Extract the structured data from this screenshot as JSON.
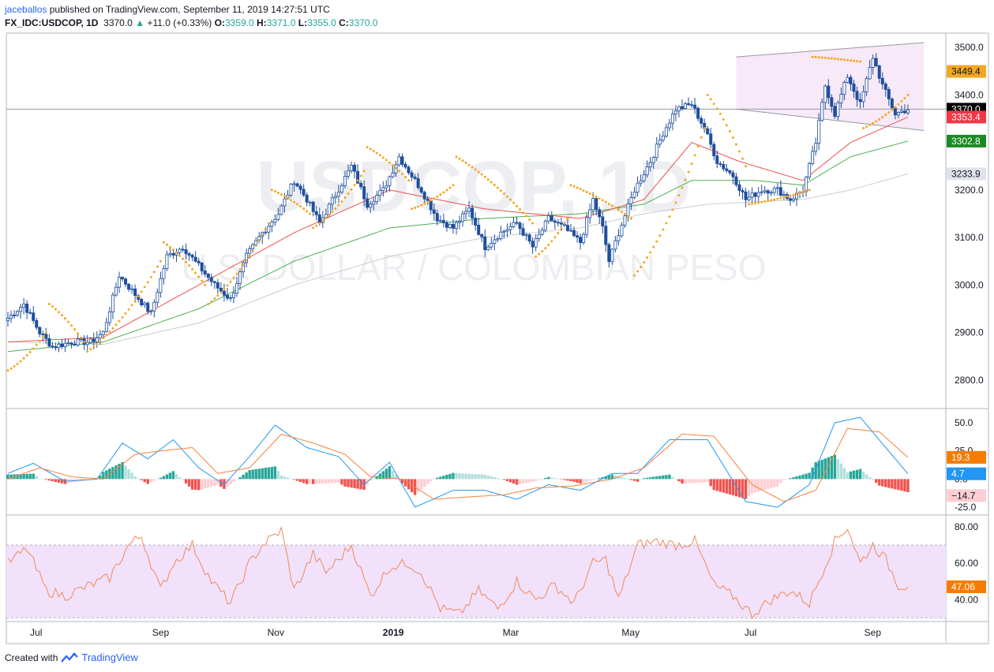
{
  "header": {
    "author": "jaceballos",
    "published_text": "published on TradingView.com, September 11, 2019 14:27:51 UTC",
    "symbol": "FX_IDC:USDCOP, 1D",
    "last": "3370.0",
    "change_arrow": "▲",
    "change": "+11.0 (+0.33%)",
    "o_label": "O:",
    "o": "3359.0",
    "h_label": "H:",
    "h": "3371.0",
    "l_label": "L:",
    "l": "3355.0",
    "c_label": "C:",
    "c": "3370.0"
  },
  "watermark": {
    "main": "USDCOP, 1D",
    "sub": "U.S. DOLLAR / COLOMBIAN PESO"
  },
  "footer": {
    "created_with": "Created with",
    "brand": "TradingView"
  },
  "colors": {
    "up": "#26a69a",
    "candle": "#1f4e9c",
    "sar": "#f5a623",
    "ma_fast": "#f05050",
    "ma_mid": "#4caf50",
    "ma_slow": "#cccccc",
    "channel_fill": "#f7e9f7",
    "rsi_band": "#f1e1fb",
    "rsi_line": "#f08a5a",
    "macd_line": "#2196f3",
    "signal_line": "#f5813a",
    "hist_up_strong": "#26a69a",
    "hist_up_weak": "#b2dfdb",
    "hist_down_strong": "#ef5350",
    "hist_down_weak": "#ffcdd2"
  },
  "chart_data": [
    {
      "type": "candlestick",
      "title": "FX_IDC:USDCOP, 1D",
      "x_ticks": [
        "Jul",
        "Sep",
        "Nov",
        "2019",
        "Mar",
        "May",
        "Jul",
        "Sep"
      ],
      "ylim": [
        2740,
        3530
      ],
      "y_ticks": [
        "3500.0",
        "3400.0",
        "3300.0",
        "3200.0",
        "3100.0",
        "3000.0",
        "2900.0",
        "2800.0"
      ],
      "price_labels": [
        {
          "value": "3449.4",
          "bg": "#f5a623",
          "fg": "#131722",
          "y": 3449.4
        },
        {
          "value": "3370.0",
          "bg": "#000000",
          "fg": "#ffffff",
          "y": 3370.0
        },
        {
          "value": "3353.4",
          "bg": "#f23645",
          "fg": "#ffffff",
          "y": 3353.4
        },
        {
          "value": "3302.8",
          "bg": "#1b8a22",
          "fg": "#ffffff",
          "y": 3302.8
        },
        {
          "value": "3233.9",
          "bg": "#e0e3eb",
          "fg": "#131722",
          "y": 3233.9
        }
      ],
      "last_price": 3370.0,
      "close_anchors": [
        [
          0,
          2930
        ],
        [
          5,
          2960
        ],
        [
          10,
          2900
        ],
        [
          14,
          2870
        ],
        [
          20,
          2880
        ],
        [
          26,
          2880
        ],
        [
          30,
          2900
        ],
        [
          35,
          3020
        ],
        [
          40,
          2980
        ],
        [
          45,
          2940
        ],
        [
          50,
          3060
        ],
        [
          55,
          3080
        ],
        [
          60,
          3040
        ],
        [
          65,
          3000
        ],
        [
          70,
          2970
        ],
        [
          75,
          3060
        ],
        [
          80,
          3110
        ],
        [
          85,
          3150
        ],
        [
          90,
          3220
        ],
        [
          94,
          3180
        ],
        [
          98,
          3130
        ],
        [
          103,
          3190
        ],
        [
          108,
          3250
        ],
        [
          113,
          3170
        ],
        [
          118,
          3200
        ],
        [
          123,
          3270
        ],
        [
          127,
          3230
        ],
        [
          130,
          3200
        ],
        [
          135,
          3140
        ],
        [
          140,
          3120
        ],
        [
          145,
          3160
        ],
        [
          150,
          3080
        ],
        [
          155,
          3110
        ],
        [
          160,
          3130
        ],
        [
          165,
          3080
        ],
        [
          170,
          3140
        ],
        [
          175,
          3120
        ],
        [
          180,
          3090
        ],
        [
          184,
          3180
        ],
        [
          187,
          3120
        ],
        [
          189,
          3050
        ],
        [
          192,
          3110
        ],
        [
          197,
          3200
        ],
        [
          202,
          3260
        ],
        [
          206,
          3320
        ],
        [
          210,
          3370
        ],
        [
          215,
          3380
        ],
        [
          219,
          3330
        ],
        [
          223,
          3260
        ],
        [
          228,
          3230
        ],
        [
          232,
          3180
        ],
        [
          237,
          3200
        ],
        [
          242,
          3200
        ],
        [
          246,
          3180
        ],
        [
          250,
          3200
        ],
        [
          254,
          3300
        ],
        [
          257,
          3420
        ],
        [
          260,
          3360
        ],
        [
          264,
          3440
        ],
        [
          268,
          3380
        ],
        [
          272,
          3480
        ],
        [
          275,
          3420
        ],
        [
          279,
          3360
        ],
        [
          283,
          3370
        ]
      ],
      "parabolic_sar_segments": [
        {
          "dir": "below",
          "start": 0,
          "end": 12,
          "from": 2820,
          "to": 2900
        },
        {
          "dir": "above",
          "start": 13,
          "end": 24,
          "from": 2960,
          "to": 2880
        },
        {
          "dir": "below",
          "start": 25,
          "end": 48,
          "from": 2860,
          "to": 3050
        },
        {
          "dir": "above",
          "start": 49,
          "end": 62,
          "from": 3090,
          "to": 3000
        },
        {
          "dir": "below",
          "start": 63,
          "end": 82,
          "from": 2960,
          "to": 3130
        },
        {
          "dir": "above",
          "start": 83,
          "end": 95,
          "from": 3200,
          "to": 3150
        },
        {
          "dir": "below",
          "start": 96,
          "end": 112,
          "from": 3120,
          "to": 3240
        },
        {
          "dir": "above",
          "start": 113,
          "end": 126,
          "from": 3290,
          "to": 3220
        },
        {
          "dir": "below",
          "start": 127,
          "end": 140,
          "from": 3160,
          "to": 3210
        },
        {
          "dir": "above",
          "start": 141,
          "end": 165,
          "from": 3270,
          "to": 3130
        },
        {
          "dir": "below",
          "start": 166,
          "end": 176,
          "from": 3060,
          "to": 3140
        },
        {
          "dir": "above",
          "start": 177,
          "end": 196,
          "from": 3210,
          "to": 3140
        },
        {
          "dir": "below",
          "start": 197,
          "end": 219,
          "from": 3020,
          "to": 3330
        },
        {
          "dir": "above",
          "start": 220,
          "end": 232,
          "from": 3400,
          "to": 3250
        },
        {
          "dir": "below",
          "start": 233,
          "end": 252,
          "from": 3170,
          "to": 3200
        },
        {
          "dir": "above",
          "start": 253,
          "end": 268,
          "from": 3480,
          "to": 3470
        },
        {
          "dir": "below",
          "start": 269,
          "end": 283,
          "from": 3330,
          "to": 3400
        }
      ],
      "ma_fast_anchors": [
        [
          0,
          2880
        ],
        [
          30,
          2890
        ],
        [
          60,
          3000
        ],
        [
          90,
          3110
        ],
        [
          120,
          3200
        ],
        [
          150,
          3160
        ],
        [
          180,
          3140
        ],
        [
          200,
          3180
        ],
        [
          215,
          3300
        ],
        [
          230,
          3260
        ],
        [
          250,
          3220
        ],
        [
          265,
          3300
        ],
        [
          283,
          3353.4
        ]
      ],
      "ma_mid_anchors": [
        [
          0,
          2860
        ],
        [
          30,
          2880
        ],
        [
          60,
          2950
        ],
        [
          90,
          3050
        ],
        [
          120,
          3120
        ],
        [
          150,
          3140
        ],
        [
          180,
          3150
        ],
        [
          200,
          3170
        ],
        [
          215,
          3220
        ],
        [
          235,
          3220
        ],
        [
          250,
          3210
        ],
        [
          265,
          3270
        ],
        [
          283,
          3302.8
        ]
      ],
      "ma_slow_anchors": [
        [
          0,
          2880
        ],
        [
          30,
          2875
        ],
        [
          60,
          2920
        ],
        [
          90,
          3000
        ],
        [
          120,
          3060
        ],
        [
          150,
          3100
        ],
        [
          180,
          3120
        ],
        [
          200,
          3150
        ],
        [
          220,
          3170
        ],
        [
          250,
          3180
        ],
        [
          265,
          3200
        ],
        [
          283,
          3233.9
        ]
      ],
      "channel": {
        "upper": [
          [
            229,
            3480
          ],
          [
            288,
            3510
          ]
        ],
        "lower": [
          [
            229,
            3370
          ],
          [
            288,
            3325
          ]
        ],
        "fill_from": 229,
        "fill_to": 288
      },
      "horizontal_line": 3370.0
    },
    {
      "type": "macd",
      "ylim": [
        -32,
        62
      ],
      "y_ticks": [
        "50.0",
        "25.0",
        "0.0",
        "-25.0"
      ],
      "value_labels": [
        {
          "value": "19.3",
          "bg": "#f57c00",
          "fg": "#ffffff",
          "y": 19.3
        },
        {
          "value": "4.7",
          "bg": "#2196f3",
          "fg": "#ffffff",
          "y": 4.7
        },
        {
          "value": "−14.7",
          "bg": "#ffcdd2",
          "fg": "#131722",
          "y": -14.7
        }
      ],
      "macd_anchors": [
        [
          0,
          5
        ],
        [
          8,
          14
        ],
        [
          18,
          -2
        ],
        [
          28,
          0
        ],
        [
          36,
          32
        ],
        [
          44,
          18
        ],
        [
          52,
          35
        ],
        [
          60,
          10
        ],
        [
          68,
          -5
        ],
        [
          76,
          20
        ],
        [
          84,
          48
        ],
        [
          94,
          28
        ],
        [
          104,
          20
        ],
        [
          112,
          -5
        ],
        [
          120,
          15
        ],
        [
          128,
          -25
        ],
        [
          140,
          -10
        ],
        [
          150,
          -10
        ],
        [
          160,
          -18
        ],
        [
          170,
          -5
        ],
        [
          180,
          -10
        ],
        [
          190,
          5
        ],
        [
          198,
          5
        ],
        [
          208,
          35
        ],
        [
          220,
          35
        ],
        [
          232,
          -20
        ],
        [
          242,
          -25
        ],
        [
          252,
          -5
        ],
        [
          260,
          50
        ],
        [
          268,
          55
        ],
        [
          276,
          28
        ],
        [
          283,
          4.7
        ]
      ],
      "signal_anchors": [
        [
          0,
          0
        ],
        [
          10,
          10
        ],
        [
          20,
          2
        ],
        [
          30,
          0
        ],
        [
          40,
          22
        ],
        [
          48,
          25
        ],
        [
          58,
          28
        ],
        [
          66,
          5
        ],
        [
          76,
          10
        ],
        [
          86,
          40
        ],
        [
          96,
          32
        ],
        [
          106,
          22
        ],
        [
          114,
          2
        ],
        [
          124,
          0
        ],
        [
          134,
          -18
        ],
        [
          144,
          -16
        ],
        [
          156,
          -14
        ],
        [
          166,
          -8
        ],
        [
          178,
          -6
        ],
        [
          190,
          0
        ],
        [
          200,
          10
        ],
        [
          212,
          40
        ],
        [
          222,
          38
        ],
        [
          234,
          -5
        ],
        [
          244,
          -20
        ],
        [
          254,
          -10
        ],
        [
          264,
          45
        ],
        [
          274,
          42
        ],
        [
          283,
          19.3
        ]
      ]
    },
    {
      "type": "line",
      "title": "RSI",
      "ylim": [
        28,
        86
      ],
      "y_ticks": [
        "80.00",
        "60.00",
        "40.00"
      ],
      "band": [
        30,
        70
      ],
      "value_labels": [
        {
          "value": "47.06",
          "bg": "#f57c00",
          "fg": "#ffffff",
          "y": 47.06
        }
      ],
      "rsi_anchors": [
        [
          0,
          60
        ],
        [
          6,
          68
        ],
        [
          12,
          45
        ],
        [
          18,
          42
        ],
        [
          26,
          48
        ],
        [
          32,
          52
        ],
        [
          38,
          70
        ],
        [
          42,
          75
        ],
        [
          48,
          45
        ],
        [
          52,
          60
        ],
        [
          58,
          70
        ],
        [
          64,
          50
        ],
        [
          70,
          38
        ],
        [
          76,
          60
        ],
        [
          80,
          70
        ],
        [
          86,
          78
        ],
        [
          90,
          45
        ],
        [
          96,
          65
        ],
        [
          100,
          55
        ],
        [
          104,
          62
        ],
        [
          108,
          70
        ],
        [
          114,
          42
        ],
        [
          120,
          58
        ],
        [
          126,
          60
        ],
        [
          130,
          55
        ],
        [
          136,
          35
        ],
        [
          142,
          32
        ],
        [
          148,
          45
        ],
        [
          154,
          35
        ],
        [
          160,
          50
        ],
        [
          166,
          40
        ],
        [
          172,
          48
        ],
        [
          178,
          38
        ],
        [
          184,
          60
        ],
        [
          188,
          62
        ],
        [
          192,
          40
        ],
        [
          198,
          70
        ],
        [
          204,
          72
        ],
        [
          210,
          70
        ],
        [
          216,
          72
        ],
        [
          222,
          48
        ],
        [
          228,
          42
        ],
        [
          234,
          32
        ],
        [
          240,
          40
        ],
        [
          246,
          45
        ],
        [
          252,
          38
        ],
        [
          256,
          55
        ],
        [
          260,
          72
        ],
        [
          264,
          80
        ],
        [
          268,
          60
        ],
        [
          272,
          70
        ],
        [
          276,
          62
        ],
        [
          280,
          48
        ],
        [
          283,
          47.06
        ]
      ]
    }
  ]
}
